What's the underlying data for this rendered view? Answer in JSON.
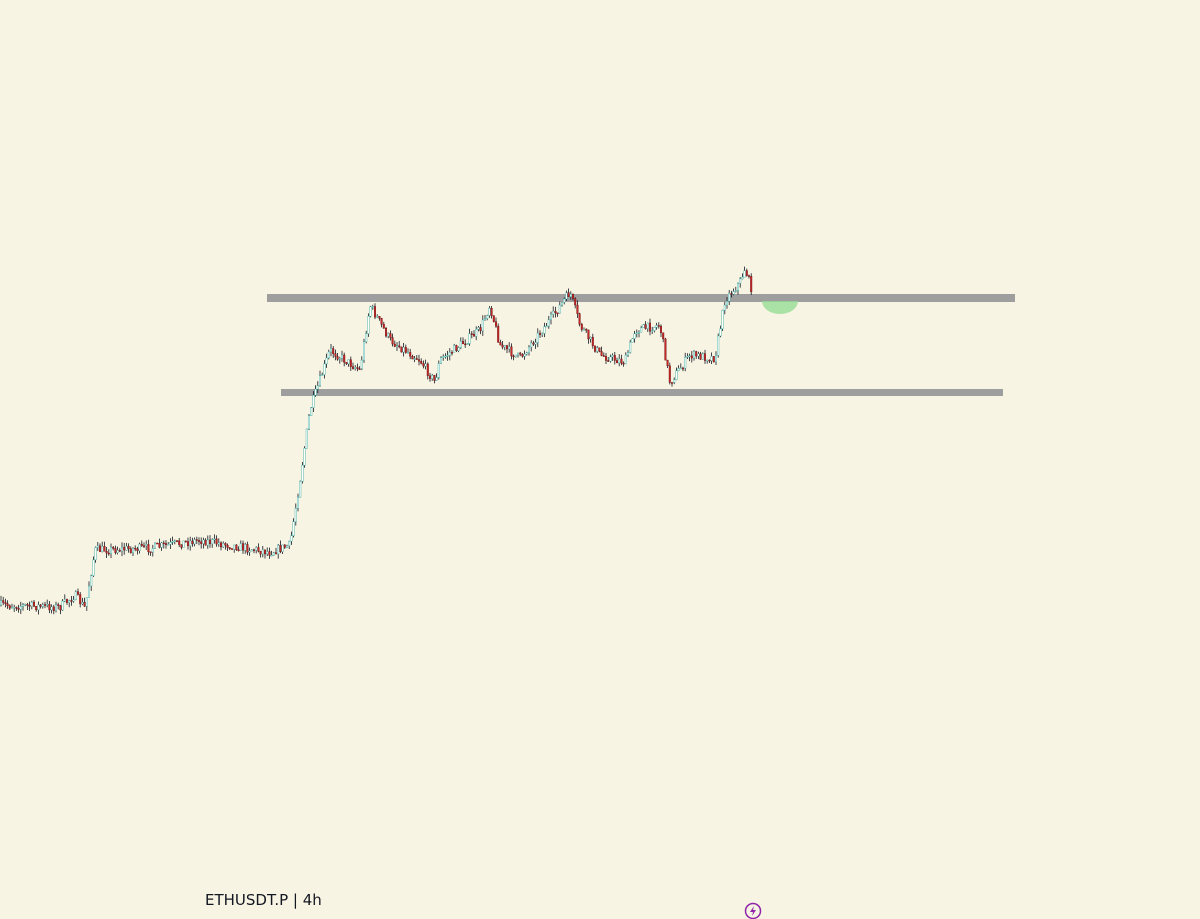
{
  "footer": {
    "symbol_label": "ETHUSDT.P | 4h"
  }
}
